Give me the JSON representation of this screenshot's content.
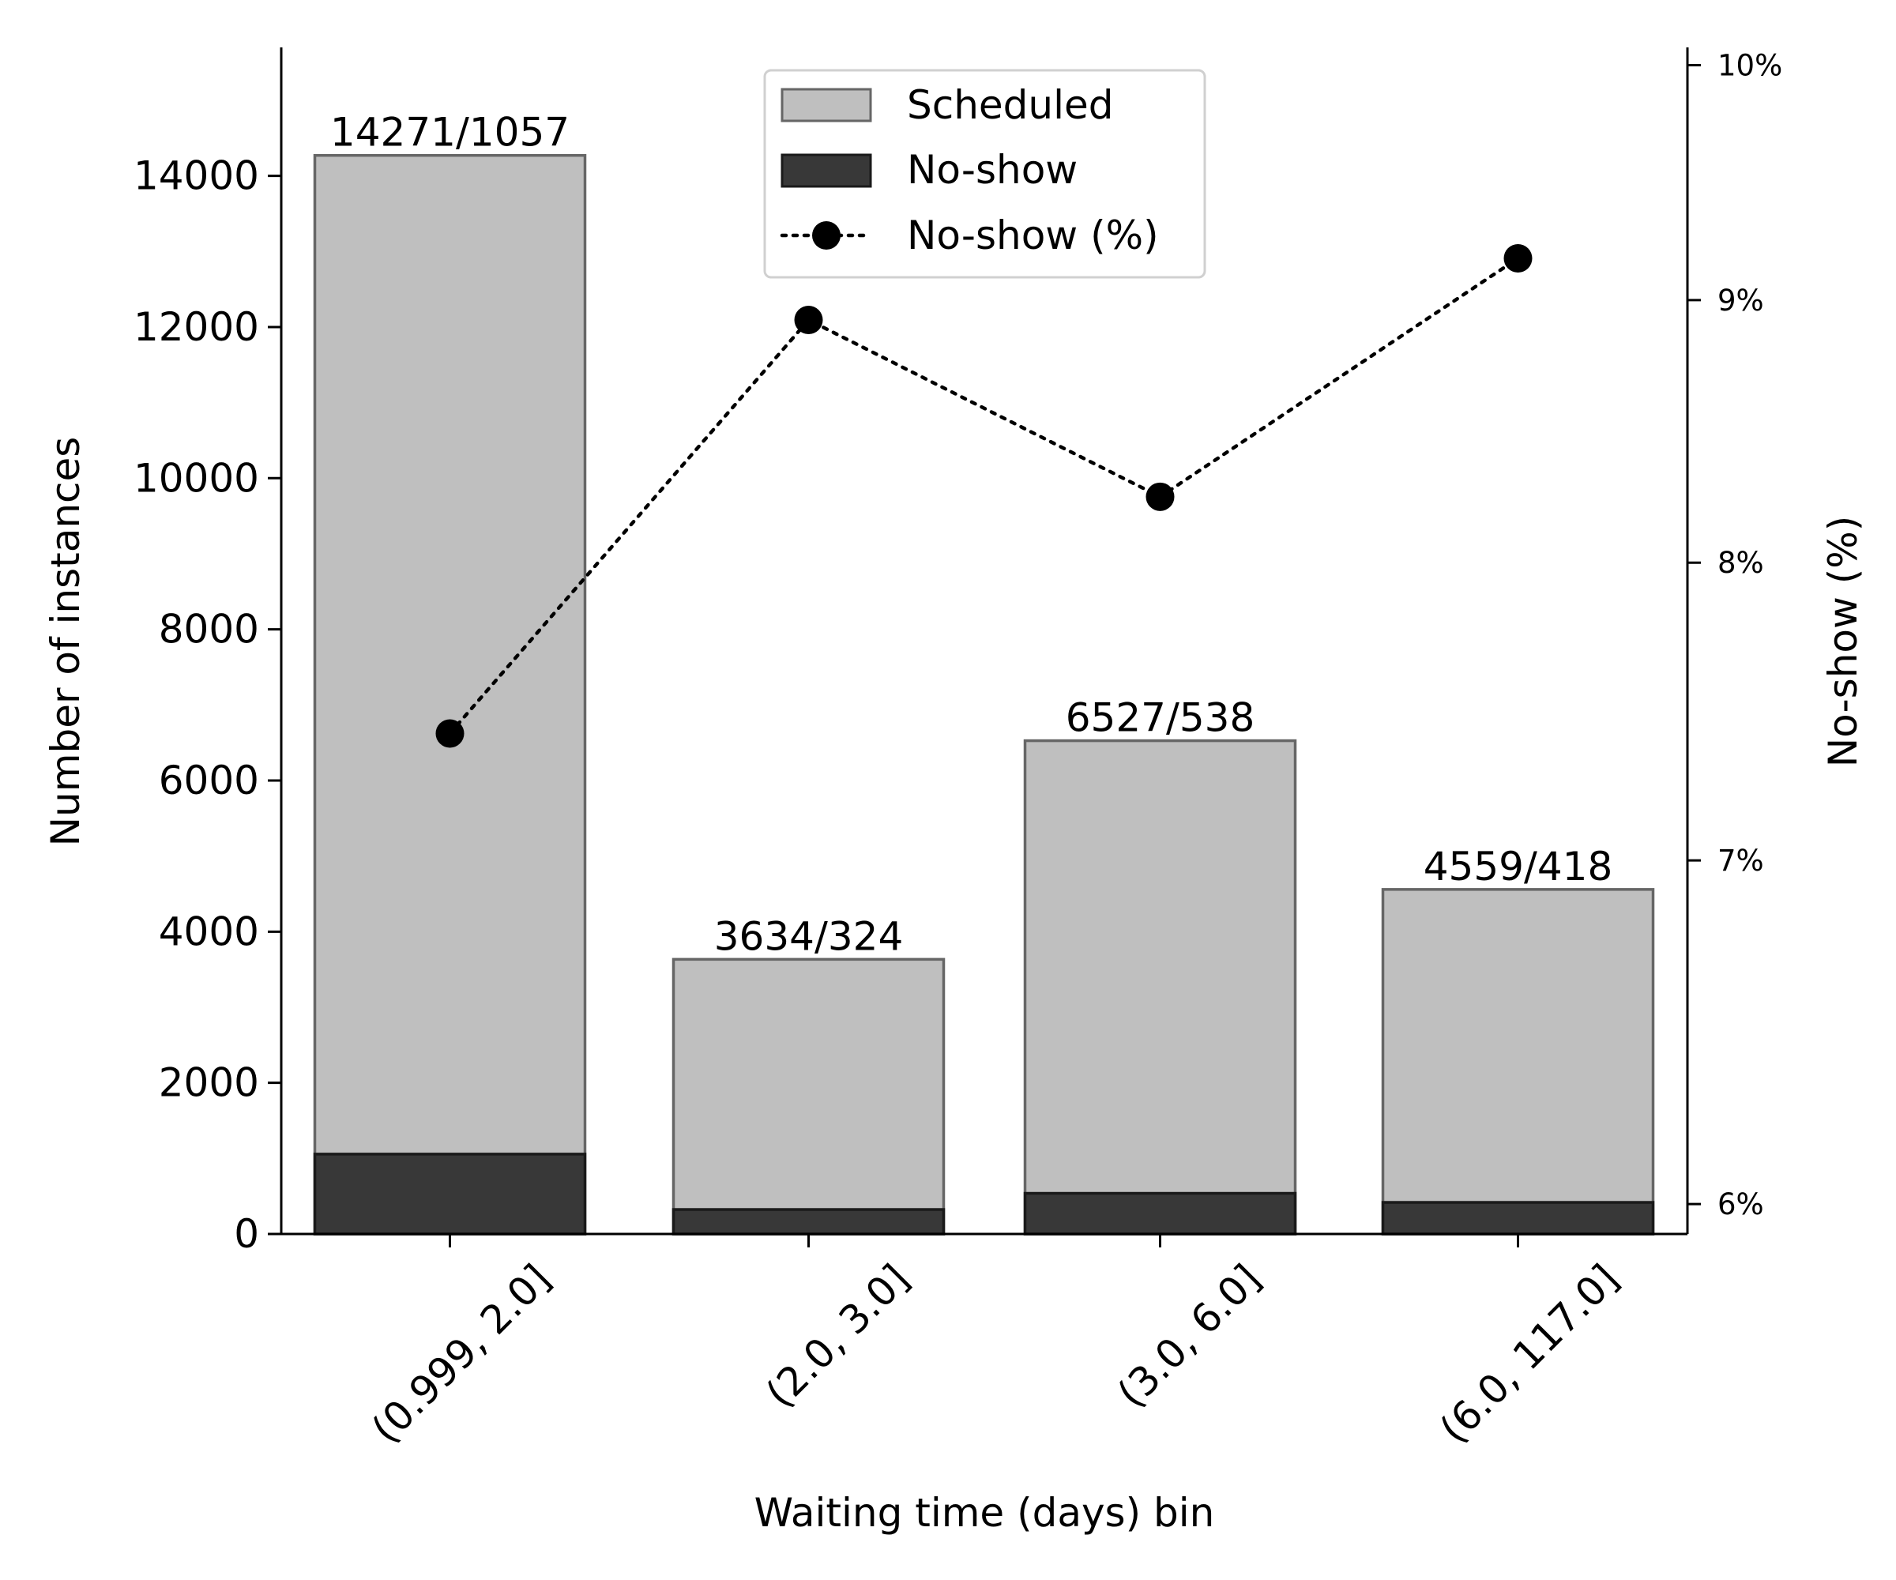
{
  "chart_data": {
    "type": "bar",
    "stacked_overlay": true,
    "categories": [
      "(0.999, 2.0]",
      "(2.0, 3.0]",
      "(3.0, 6.0]",
      "(6.0, 117.0]"
    ],
    "series": [
      {
        "name": "Scheduled",
        "values": [
          14271,
          3634,
          6527,
          4559
        ],
        "color": "#bfbfbf",
        "edge": "#666666"
      },
      {
        "name": "No-show",
        "values": [
          1057,
          324,
          538,
          418
        ],
        "color": "#383838",
        "edge": "#1a1a1a"
      },
      {
        "name": "No-show (%)",
        "type": "line",
        "axis": "right",
        "values": [
          7.41,
          8.92,
          8.24,
          9.17
        ],
        "color": "#000000",
        "linestyle": "dotted",
        "marker": "circle"
      }
    ],
    "bar_labels": [
      "14271/1057",
      "3634/324",
      "6527/538",
      "4559/418"
    ],
    "xlabel": "Waiting time (days) bin",
    "ylabel": "Number of instances",
    "y2label": "No-show (%)",
    "ylim": [
      0,
      15700
    ],
    "y_ticks": [
      0,
      2000,
      4000,
      6000,
      8000,
      10000,
      12000,
      14000
    ],
    "y2lim": [
      5.92,
      10.08
    ],
    "y2_ticks": [
      6,
      7,
      8,
      9,
      10
    ],
    "y2_tick_labels": [
      "6%",
      "7%",
      "8%",
      "9%",
      "10%"
    ],
    "y2_scale": "log",
    "grid": false,
    "legend_position": "top-center"
  }
}
